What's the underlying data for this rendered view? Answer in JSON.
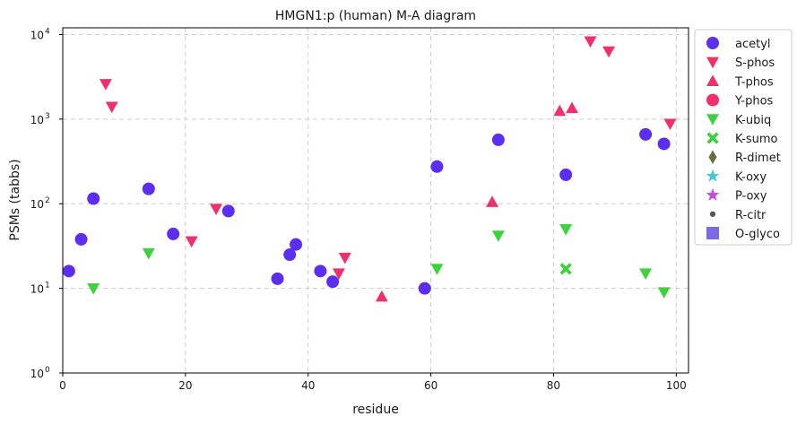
{
  "chart_data": {
    "type": "scatter",
    "title": "HMGN1:p (human) M-A diagram",
    "xlabel": "residue",
    "ylabel": "PSMs (tabbs)",
    "xlim": [
      0,
      102
    ],
    "ylim": [
      1,
      12000
    ],
    "yscale": "log",
    "x_ticks": [
      0,
      20,
      40,
      60,
      80,
      100
    ],
    "y_ticks": [
      {
        "value": 1,
        "base": "10",
        "exp": "0"
      },
      {
        "value": 10,
        "base": "10",
        "exp": "1"
      },
      {
        "value": 100,
        "base": "10",
        "exp": "2"
      },
      {
        "value": 1000,
        "base": "10",
        "exp": "3"
      },
      {
        "value": 10000,
        "base": "10",
        "exp": "4"
      }
    ],
    "grid": true,
    "legend_position": "outside-right",
    "series": [
      {
        "name": "acetyl",
        "marker": "circle",
        "color": "#5b2ef0",
        "points": [
          [
            1,
            16
          ],
          [
            3,
            38
          ],
          [
            5,
            115
          ],
          [
            14,
            150
          ],
          [
            18,
            44
          ],
          [
            27,
            82
          ],
          [
            35,
            13
          ],
          [
            37,
            25
          ],
          [
            38,
            33
          ],
          [
            42,
            16
          ],
          [
            44,
            12
          ],
          [
            59,
            10
          ],
          [
            61,
            275
          ],
          [
            71,
            570
          ],
          [
            82,
            220
          ],
          [
            95,
            660
          ],
          [
            98,
            510
          ]
        ]
      },
      {
        "name": "S-phos",
        "marker": "triangle-down",
        "color": "#f0306a",
        "points": [
          [
            7,
            2600
          ],
          [
            8,
            1400
          ],
          [
            21,
            36
          ],
          [
            25,
            87
          ],
          [
            45,
            15
          ],
          [
            46,
            23
          ],
          [
            86,
            8300
          ],
          [
            89,
            6300
          ],
          [
            99,
            880
          ]
        ]
      },
      {
        "name": "T-phos",
        "marker": "triangle-up",
        "color": "#f0306a",
        "points": [
          [
            52,
            8
          ],
          [
            70,
            105
          ],
          [
            81,
            1250
          ],
          [
            83,
            1350
          ]
        ]
      },
      {
        "name": "Y-phos",
        "marker": "circle",
        "color": "#f0306a",
        "points": []
      },
      {
        "name": "K-ubiq",
        "marker": "triangle-down",
        "color": "#3fd13f",
        "points": [
          [
            5,
            10
          ],
          [
            14,
            26
          ],
          [
            61,
            17
          ],
          [
            71,
            42
          ],
          [
            82,
            50
          ],
          [
            95,
            15
          ],
          [
            98,
            9
          ]
        ]
      },
      {
        "name": "K-sumo",
        "marker": "x",
        "color": "#3fd13f",
        "points": [
          [
            82,
            17
          ]
        ]
      },
      {
        "name": "R-dimet",
        "marker": "diamond",
        "color": "#6b6b45",
        "points": []
      },
      {
        "name": "K-oxy",
        "marker": "star",
        "color": "#3ec9d6",
        "points": []
      },
      {
        "name": "P-oxy",
        "marker": "star",
        "color": "#c64bd6",
        "points": []
      },
      {
        "name": "R-citr",
        "marker": "dot",
        "color": "#555555",
        "points": []
      },
      {
        "name": "O-glyco",
        "marker": "square",
        "color": "#7a6ae6",
        "points": []
      }
    ]
  }
}
